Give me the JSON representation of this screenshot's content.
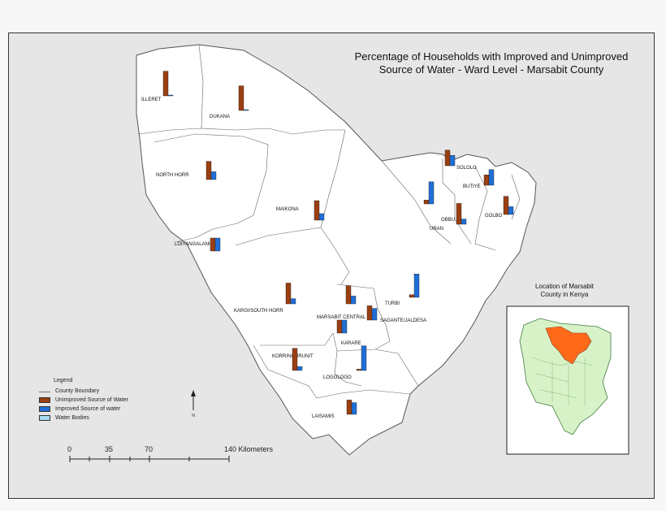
{
  "title_line1": "Percentage of Households with Improved and Unimproved",
  "title_line2": "Source of Water - Ward Level - Marsabit County",
  "legend": {
    "heading": "Legend",
    "boundary_label": "County Boundary",
    "unimproved_label": "Unimproved Source of Water",
    "improved_label": "Improved Source of water",
    "water_label": "Water Bodies"
  },
  "colors": {
    "unimproved": "#9a3f12",
    "improved": "#1f6fd6",
    "water": "#a6d8f0",
    "county_fill": "#ffffff",
    "inset_land": "#d8f2c8",
    "inset_county": "#ff6a1a"
  },
  "inset": {
    "title_line1": "Location of Marsabit",
    "title_line2": "County in Kenya"
  },
  "scale": {
    "ticks": [
      "0",
      "35",
      "70",
      "140 Kilometers"
    ]
  },
  "north_arrow_label": "N",
  "wards": [
    {
      "name": "ILLERET",
      "unimproved": 95,
      "improved": 1
    },
    {
      "name": "DUKANA",
      "unimproved": 95,
      "improved": 2
    },
    {
      "name": "NORTH HORR",
      "unimproved": 70,
      "improved": 30
    },
    {
      "name": "MAIKONA",
      "unimproved": 75,
      "improved": 25
    },
    {
      "name": "LOIYANGALANI",
      "unimproved": 50,
      "improved": 50
    },
    {
      "name": "KARGI/SOUTH HORR",
      "unimproved": 80,
      "improved": 20
    },
    {
      "name": "MARSABIT CENTRAL",
      "unimproved": 70,
      "improved": 30
    },
    {
      "name": "TURBI",
      "unimproved": 10,
      "improved": 90
    },
    {
      "name": "SAGANTE/JALDESA",
      "unimproved": 55,
      "improved": 45
    },
    {
      "name": "KARARE",
      "unimproved": 50,
      "improved": 50
    },
    {
      "name": "KORR/NGURUNIT",
      "unimproved": 85,
      "improved": 15
    },
    {
      "name": "LOGOLOGO",
      "unimproved": 5,
      "improved": 95
    },
    {
      "name": "LAISAMIS",
      "unimproved": 55,
      "improved": 45
    },
    {
      "name": "SOLOLO",
      "unimproved": 60,
      "improved": 40
    },
    {
      "name": "BUTIYE",
      "unimproved": 40,
      "improved": 60
    },
    {
      "name": "OBBU",
      "unimproved": 80,
      "improved": 20
    },
    {
      "name": "URAN",
      "unimproved": 15,
      "improved": 85
    },
    {
      "name": "GOLBO",
      "unimproved": 70,
      "improved": 30
    }
  ]
}
